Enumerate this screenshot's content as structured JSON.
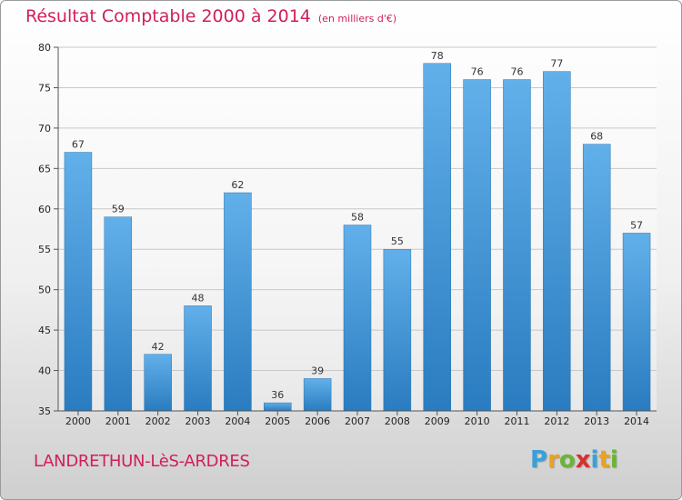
{
  "title": "Résultat Comptable 2000 à 2014",
  "unit": "(en milliers d'€)",
  "commune": "LANDRETHUN-LèS-ARDRES",
  "logo": {
    "letters": [
      "P",
      "r",
      "o",
      "x",
      "i",
      "t",
      "i"
    ],
    "colors": [
      "#3aa0d8",
      "#e9a320",
      "#6bb535",
      "#d9302a",
      "#3aa0d8",
      "#e9a320",
      "#6bb535"
    ]
  },
  "colors": {
    "bar_top": "#62b0ea",
    "bar_bottom": "#2a7cc0",
    "grid": "#c8c8c8",
    "title": "#d0205a"
  },
  "chart_data": {
    "type": "bar",
    "categories": [
      "2000",
      "2001",
      "2002",
      "2003",
      "2004",
      "2005",
      "2006",
      "2007",
      "2008",
      "2009",
      "2010",
      "2011",
      "2012",
      "2013",
      "2014"
    ],
    "values": [
      67,
      59,
      42,
      48,
      62,
      36,
      39,
      58,
      55,
      78,
      76,
      76,
      77,
      68,
      57
    ],
    "title": "Résultat Comptable 2000 à 2014",
    "xlabel": "",
    "ylabel": "",
    "ylim": [
      35,
      80
    ],
    "yticks": [
      35,
      40,
      45,
      50,
      55,
      60,
      65,
      70,
      75,
      80
    ],
    "grid": true
  }
}
